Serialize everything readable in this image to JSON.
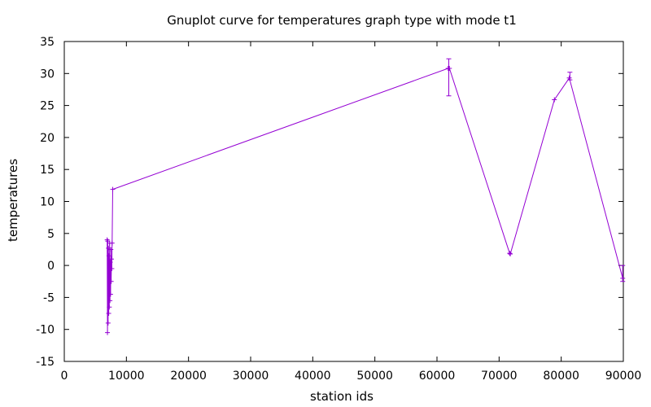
{
  "chart_data": {
    "type": "line",
    "title": "Gnuplot curve for temperatures graph type with mode t1",
    "xlabel": "station ids",
    "ylabel": "temperatures",
    "xlim": [
      0,
      90000
    ],
    "ylim": [
      -15,
      35
    ],
    "x_ticks": [
      0,
      10000,
      20000,
      30000,
      40000,
      50000,
      60000,
      70000,
      80000,
      90000
    ],
    "y_ticks": [
      -15,
      -10,
      -5,
      0,
      5,
      10,
      15,
      20,
      25,
      30,
      35
    ],
    "grid": false,
    "legend": "none",
    "series_color": "#9400d3",
    "points": [
      {
        "x": 6900,
        "y": 4.0
      },
      {
        "x": 6950,
        "y": -10.5
      },
      {
        "x": 7000,
        "y": 3.8
      },
      {
        "x": 7050,
        "y": -9.0
      },
      {
        "x": 7100,
        "y": 2.7
      },
      {
        "x": 7150,
        "y": -7.5
      },
      {
        "x": 7200,
        "y": 1.5
      },
      {
        "x": 7250,
        "y": -6.5
      },
      {
        "x": 7300,
        "y": 3.5
      },
      {
        "x": 7350,
        "y": -5.5
      },
      {
        "x": 7400,
        "y": 0.5
      },
      {
        "x": 7450,
        "y": -4.5
      },
      {
        "x": 7500,
        "y": 2.5
      },
      {
        "x": 7550,
        "y": -2.5
      },
      {
        "x": 7600,
        "y": 1.0
      },
      {
        "x": 7650,
        "y": -0.5
      },
      {
        "x": 7700,
        "y": 3.5
      },
      {
        "x": 7800,
        "y": 11.9
      },
      {
        "x": 61800,
        "y": 30.8
      },
      {
        "x": 62000,
        "y": 30.8
      },
      {
        "x": 71700,
        "y": 1.9
      },
      {
        "x": 71800,
        "y": 1.8
      },
      {
        "x": 78900,
        "y": 25.9
      },
      {
        "x": 81300,
        "y": 29.3
      },
      {
        "x": 89900,
        "y": -2.0
      }
    ],
    "error_bars": [
      {
        "x": 61900,
        "low": 26.5,
        "high": 32.3
      },
      {
        "x": 81400,
        "low": 29.0,
        "high": 30.2
      },
      {
        "x": 89900,
        "low": -2.5,
        "high": 0.0
      }
    ]
  }
}
